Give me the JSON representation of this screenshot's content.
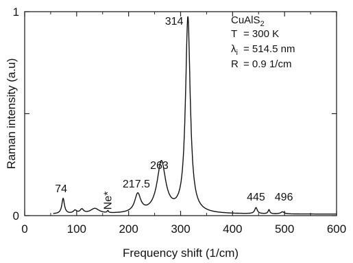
{
  "chart_data": {
    "type": "line",
    "xlabel": "Frequency shift (1/cm)",
    "ylabel": "Raman intensity (a.u)",
    "xlim": [
      0,
      600
    ],
    "ylim": [
      0,
      1
    ],
    "x_ticks": [
      "0",
      "100",
      "200",
      "300",
      "400",
      "500",
      "600"
    ],
    "y_ticks": [
      "0",
      "1"
    ],
    "grid": false,
    "legend": "none",
    "line_color": "#111111",
    "info_box": {
      "compound": "CuAlS",
      "compound_sub": "2",
      "rows": [
        {
          "sym": "T",
          "sub": "",
          "val": "= 300 K"
        },
        {
          "sym": "λ",
          "sub": "i",
          "val": "= 514.5 nm"
        },
        {
          "sym": "R",
          "sub": "",
          "val": "= 0.9    1/cm"
        }
      ]
    },
    "peaks": [
      {
        "x": 74,
        "y": 0.075,
        "w": 3,
        "label": "74"
      },
      {
        "x": 160,
        "y": 0.01,
        "w": 1.5,
        "label": "Ne*"
      },
      {
        "x": 217.5,
        "y": 0.09,
        "w": 7,
        "label": "217.5"
      },
      {
        "x": 263,
        "y": 0.25,
        "w": 10,
        "label": "263"
      },
      {
        "x": 314,
        "y": 0.96,
        "w": 5.5,
        "label": "314"
      },
      {
        "x": 445,
        "y": 0.03,
        "w": 3,
        "label": "445"
      },
      {
        "x": 496,
        "y": 0.01,
        "w": 4,
        "label": "496"
      }
    ],
    "minor_features": [
      {
        "x": 97,
        "y": 0.015,
        "w": 4
      },
      {
        "x": 110,
        "y": 0.02,
        "w": 4
      },
      {
        "x": 135,
        "y": 0.025,
        "w": 10
      },
      {
        "x": 470,
        "y": 0.02,
        "w": 2
      }
    ],
    "baseline": 0.007
  }
}
